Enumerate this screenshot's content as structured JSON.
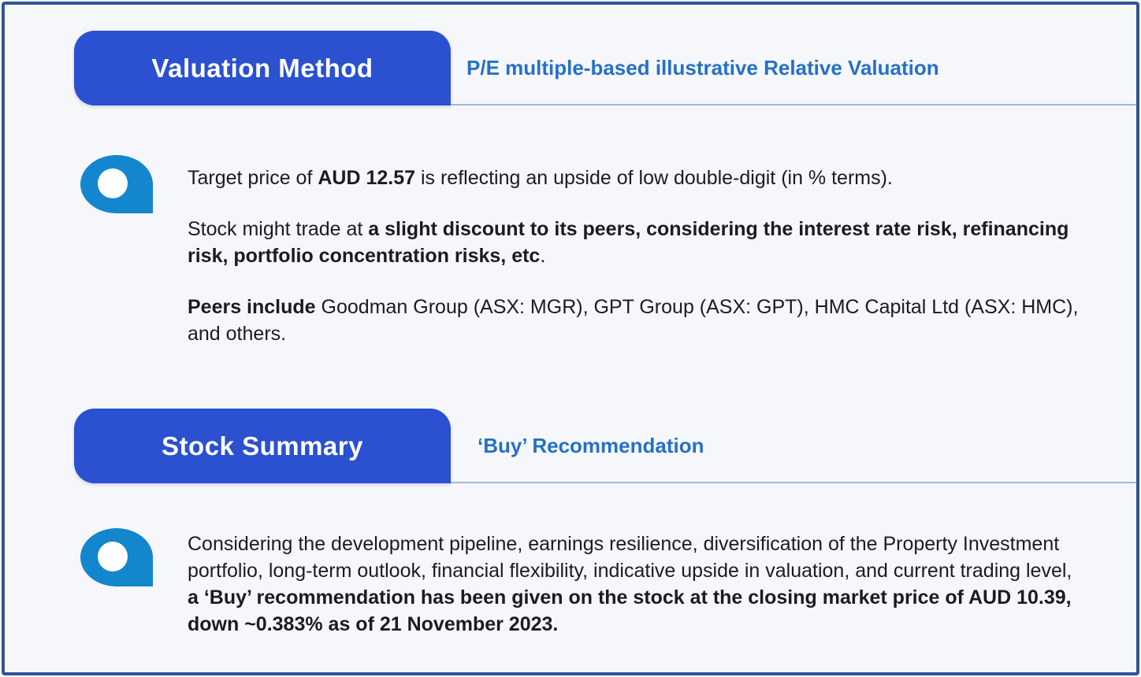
{
  "colors": {
    "frame_border": "#2f5597",
    "tab_blue": "#2b50d0",
    "subtitle_blue": "#2570c8",
    "pin_blue": "#1386cd",
    "divider": "#9fb6da",
    "body_text": "#1c1c1e",
    "background": "#f6f7fa"
  },
  "sections": [
    {
      "title": "Valuation Method",
      "subtitle": "P/E multiple-based illustrative Relative Valuation",
      "paragraphs": [
        [
          {
            "t": "Target price of "
          },
          {
            "t": "AUD 12.57",
            "b": true
          },
          {
            "t": " is reflecting an upside of low double-digit (in % terms)."
          }
        ],
        [
          {
            "t": "Stock might trade at "
          },
          {
            "t": "a slight discount to its peers, considering the interest rate risk, refinancing risk, portfolio concentration risks, etc",
            "b": true
          },
          {
            "t": "."
          }
        ],
        [
          {
            "t": "Peers include ",
            "b": true
          },
          {
            "t": "Goodman Group (ASX: MGR), GPT Group (ASX: GPT), HMC Capital Ltd (ASX: HMC), and others."
          }
        ]
      ]
    },
    {
      "title": "Stock Summary",
      "subtitle": "‘Buy’ Recommendation",
      "paragraphs": [
        [
          {
            "t": "Considering the development pipeline, earnings resilience, diversification of the Property Investment portfolio, long-term outlook, financial flexibility, indicative upside in valuation, and current trading level, "
          },
          {
            "t": "a ‘Buy’ recommendation has been given on the stock at the closing market price of AUD 10.39, down ~0.383% as of 21 November 2023.",
            "b": true
          }
        ]
      ]
    }
  ]
}
